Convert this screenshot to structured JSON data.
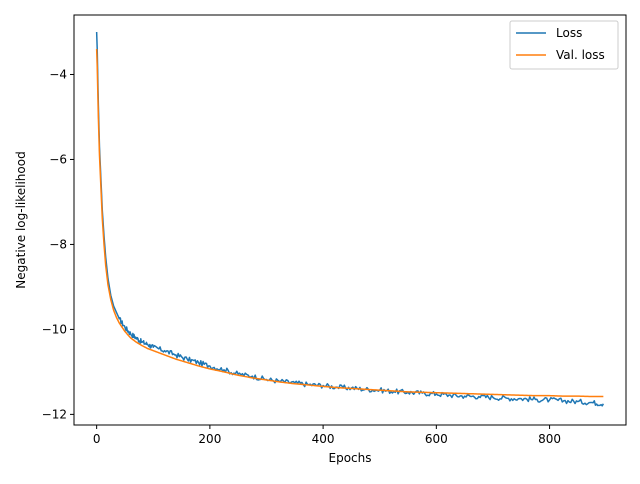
{
  "chart_data": {
    "type": "line",
    "title": "",
    "xlabel": "Epochs",
    "ylabel": "Negative log-likelihood",
    "xlim": [
      -40,
      935
    ],
    "ylim": [
      -12.25,
      -2.6
    ],
    "grid": false,
    "legend_position": "top-right",
    "x_ticks": [
      0,
      200,
      400,
      600,
      800
    ],
    "x_tick_labels": [
      "0",
      "200",
      "400",
      "600",
      "800"
    ],
    "y_ticks": [
      -12,
      -10,
      -8,
      -6,
      -4
    ],
    "y_tick_labels": [
      "−12",
      "−10",
      "−8",
      "−6",
      "−4"
    ],
    "series": [
      {
        "name": "Loss",
        "color": "#1f77b4",
        "x": [
          0,
          1,
          3,
          5,
          8,
          10,
          13,
          16,
          20,
          25,
          30,
          35,
          40,
          50,
          60,
          70,
          80,
          90,
          100,
          120,
          140,
          160,
          180,
          200,
          225,
          250,
          275,
          300,
          325,
          350,
          375,
          400,
          425,
          450,
          475,
          500,
          525,
          550,
          575,
          600,
          625,
          650,
          675,
          700,
          725,
          750,
          775,
          800,
          825,
          850,
          875,
          895
        ],
        "y": [
          -3.0,
          -3.4,
          -4.7,
          -5.7,
          -6.6,
          -7.2,
          -7.8,
          -8.3,
          -8.8,
          -9.2,
          -9.45,
          -9.6,
          -9.75,
          -9.95,
          -10.1,
          -10.2,
          -10.3,
          -10.35,
          -10.42,
          -10.5,
          -10.6,
          -10.7,
          -10.78,
          -10.86,
          -10.95,
          -11.05,
          -11.1,
          -11.18,
          -11.22,
          -11.26,
          -11.3,
          -11.32,
          -11.36,
          -11.38,
          -11.41,
          -11.43,
          -11.46,
          -11.48,
          -11.5,
          -11.52,
          -11.55,
          -11.57,
          -11.58,
          -11.6,
          -11.62,
          -11.63,
          -11.65,
          -11.66,
          -11.68,
          -11.7,
          -11.72,
          -11.75
        ]
      },
      {
        "name": "Val. loss",
        "color": "#ff7f0e",
        "x": [
          0,
          1,
          3,
          5,
          8,
          10,
          13,
          16,
          20,
          25,
          30,
          35,
          40,
          50,
          60,
          70,
          80,
          90,
          100,
          120,
          140,
          160,
          180,
          200,
          225,
          250,
          275,
          300,
          325,
          350,
          375,
          400,
          425,
          450,
          475,
          500,
          525,
          550,
          575,
          600,
          625,
          650,
          675,
          700,
          725,
          750,
          775,
          800,
          825,
          850,
          875,
          895
        ],
        "y": [
          -3.4,
          -3.8,
          -5.0,
          -5.9,
          -6.8,
          -7.4,
          -8.0,
          -8.5,
          -8.95,
          -9.3,
          -9.55,
          -9.72,
          -9.85,
          -10.05,
          -10.2,
          -10.3,
          -10.38,
          -10.45,
          -10.5,
          -10.6,
          -10.7,
          -10.78,
          -10.86,
          -10.93,
          -11.0,
          -11.08,
          -11.14,
          -11.19,
          -11.24,
          -11.28,
          -11.31,
          -11.34,
          -11.37,
          -11.39,
          -11.41,
          -11.43,
          -11.45,
          -11.47,
          -11.48,
          -11.49,
          -11.5,
          -11.51,
          -11.52,
          -11.53,
          -11.54,
          -11.55,
          -11.56,
          -11.56,
          -11.57,
          -11.57,
          -11.58,
          -11.58
        ]
      }
    ]
  }
}
